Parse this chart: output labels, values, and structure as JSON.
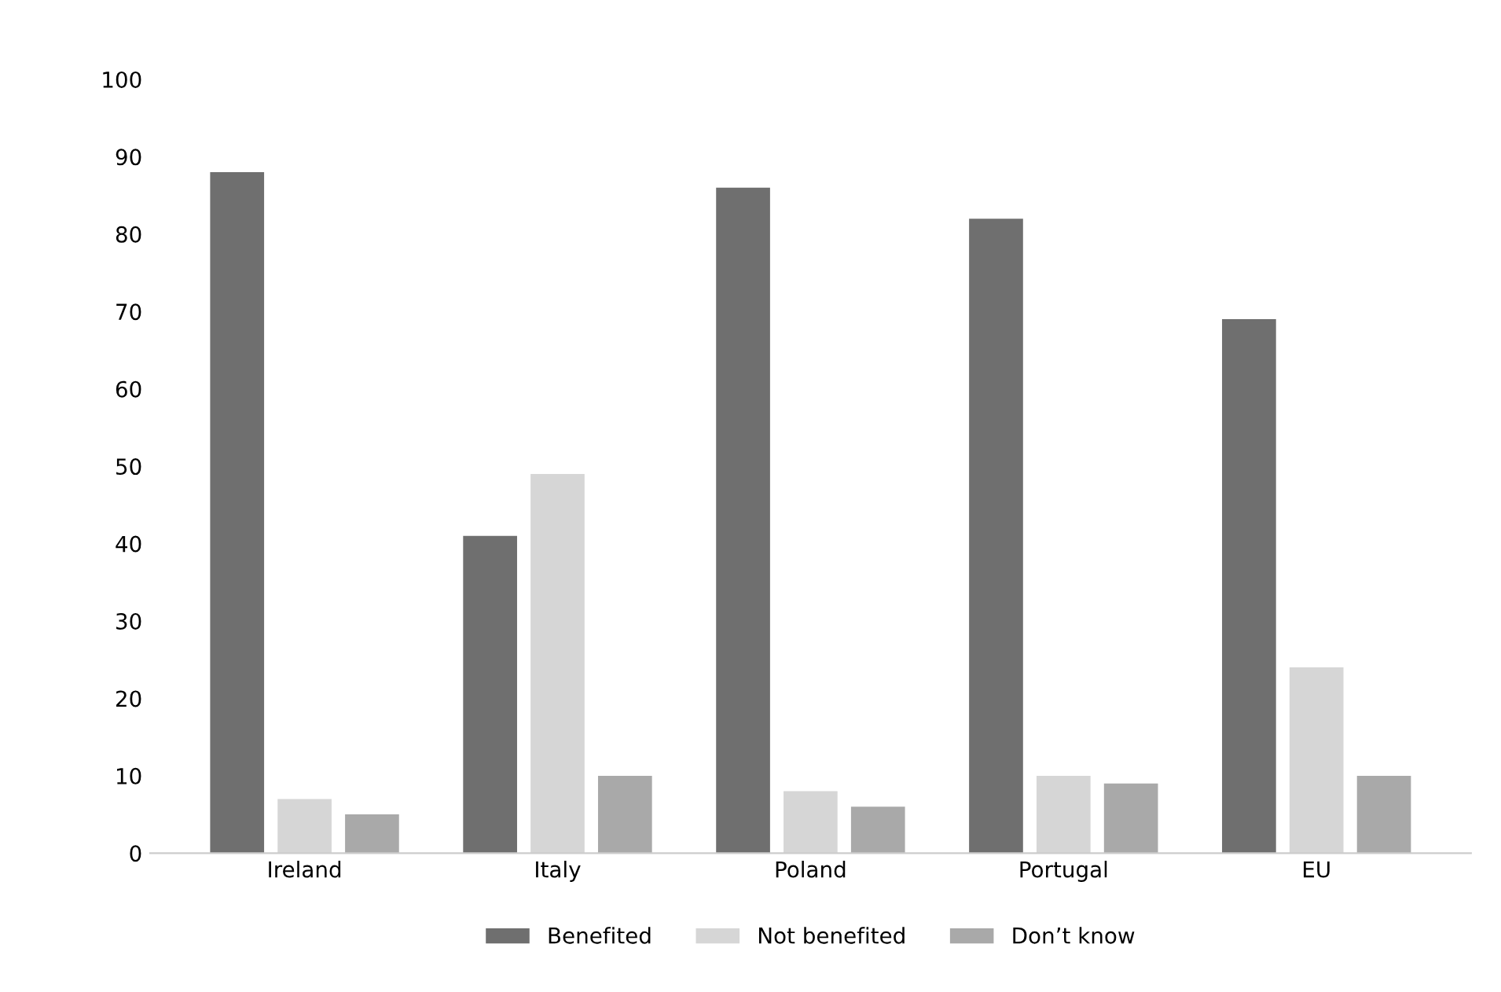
{
  "chart_data": {
    "type": "bar",
    "categories": [
      "Ireland",
      "Italy",
      "Poland",
      "Portugal",
      "EU"
    ],
    "series": [
      {
        "name": "Benefited",
        "color": "#6f6f6f",
        "values": [
          88,
          41,
          86,
          82,
          69
        ]
      },
      {
        "name": "Not benefited",
        "color": "#d6d6d6",
        "values": [
          7,
          49,
          8,
          10,
          24
        ]
      },
      {
        "name": "Don’t know",
        "color": "#a9a9a9",
        "values": [
          5,
          10,
          6,
          9,
          10
        ]
      }
    ],
    "ylim": [
      0,
      100
    ],
    "yticks": [
      0,
      10,
      20,
      30,
      40,
      50,
      60,
      70,
      80,
      90,
      100
    ],
    "legend": "bottom"
  }
}
